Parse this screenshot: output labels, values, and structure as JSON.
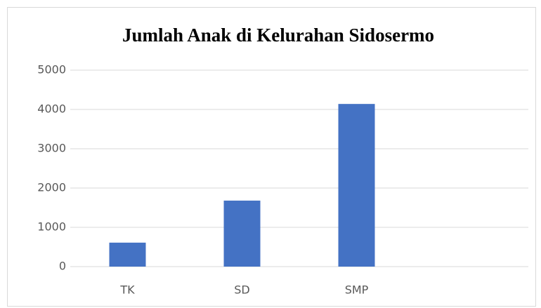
{
  "chart_data": {
    "type": "bar",
    "title": "Jumlah Anak di Kelurahan Sidosermo",
    "categories": [
      "TK",
      "SD",
      "SMP",
      null
    ],
    "values": [
      610,
      1680,
      4140,
      null
    ],
    "color": "#4472c4",
    "ylim": [
      0,
      5000
    ],
    "yticks": [
      0,
      1000,
      2000,
      3000,
      4000,
      5000
    ],
    "grid": true
  }
}
